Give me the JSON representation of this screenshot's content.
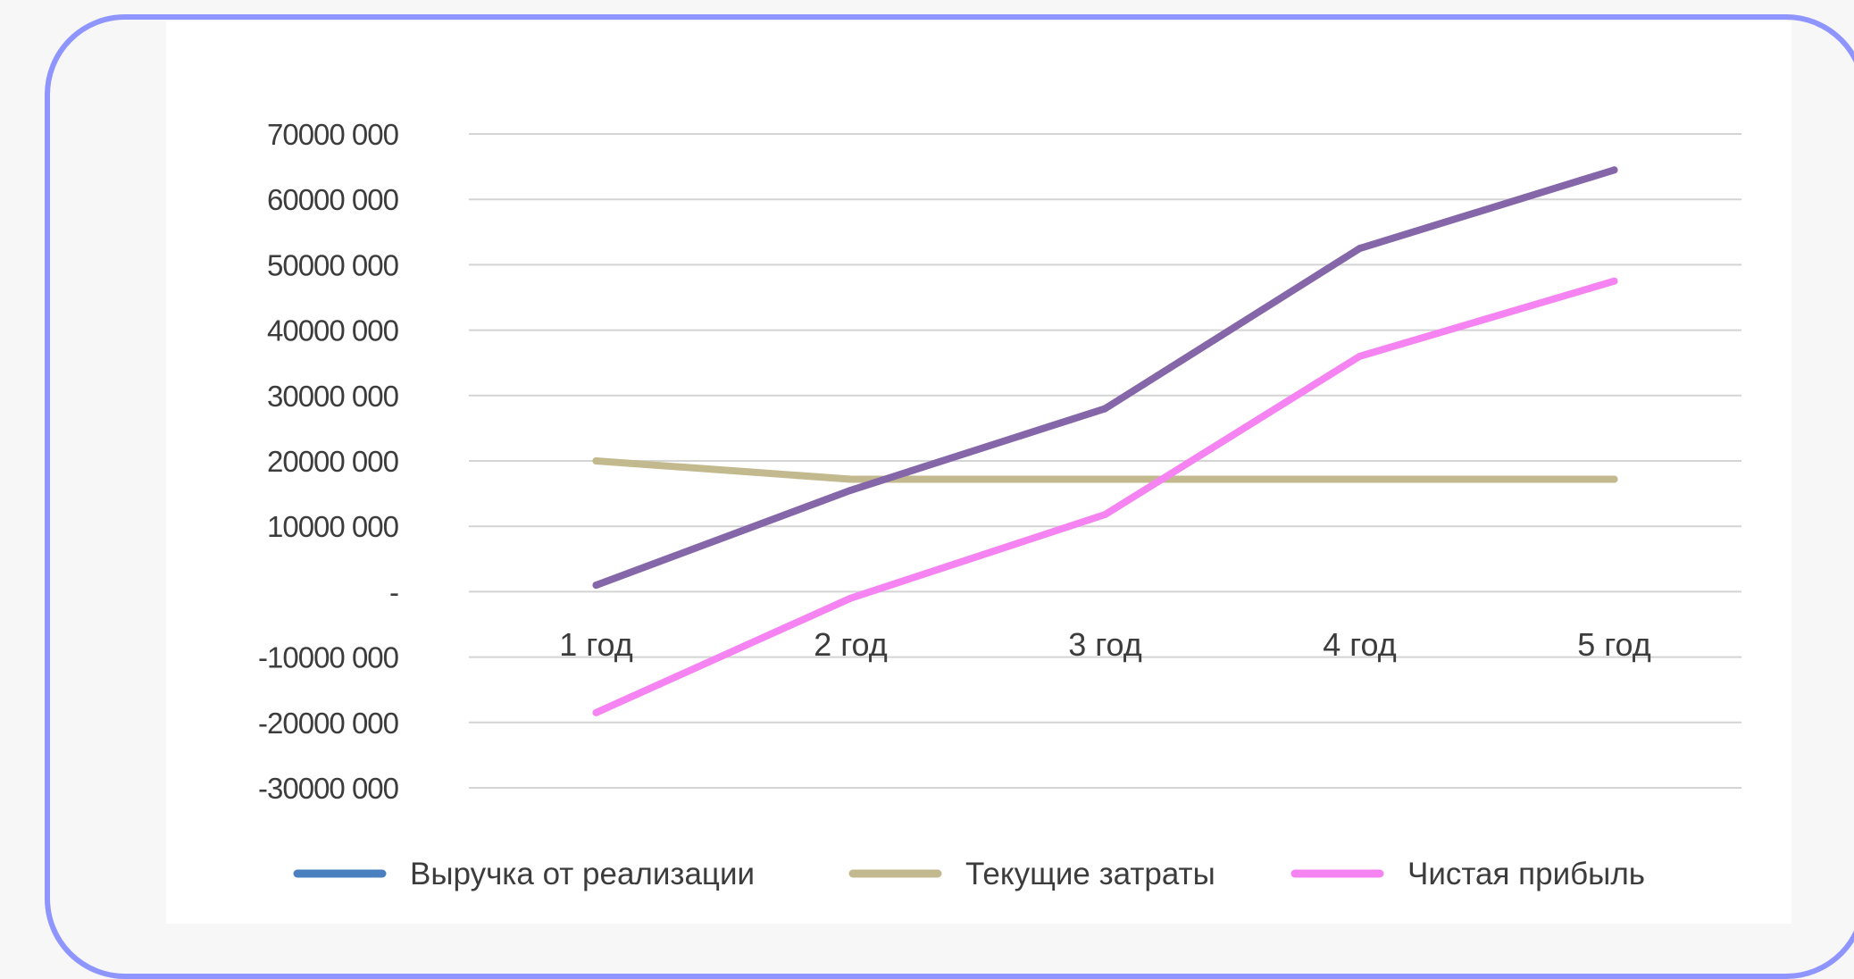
{
  "chart_data": {
    "type": "line",
    "title": "",
    "xlabel": "",
    "ylabel": "",
    "categories": [
      "1 год",
      "2 год",
      "3 год",
      "4 год",
      "5 год"
    ],
    "ylim": [
      -30000000,
      70000000
    ],
    "yticks": [
      70000000,
      60000000,
      50000000,
      40000000,
      30000000,
      20000000,
      10000000,
      0,
      -10000000,
      -20000000,
      -30000000
    ],
    "ytick_labels": [
      "70000 000",
      "60000 000",
      "50000 000",
      "40000 000",
      "30000 000",
      "20000 000",
      "10000 000",
      "-",
      "-10000 000",
      "-20000 000",
      "-30000 000"
    ],
    "grid": true,
    "legend_position": "bottom",
    "series": [
      {
        "name": "Выручка от реализации",
        "legend_color": "#4a7fc0",
        "line_color": "#8566a8",
        "values": [
          1000000,
          15500000,
          28000000,
          52500000,
          64500000
        ]
      },
      {
        "name": "Текущие затраты",
        "legend_color": "#c2b98f",
        "line_color": "#c2b98f",
        "values": [
          20000000,
          17200000,
          17200000,
          17200000,
          17200000
        ]
      },
      {
        "name": "Чистая прибыль",
        "legend_color": "#f584f2",
        "line_color": "#f584f2",
        "values": [
          -18500000,
          -1000000,
          11800000,
          36000000,
          47500000
        ]
      }
    ]
  }
}
